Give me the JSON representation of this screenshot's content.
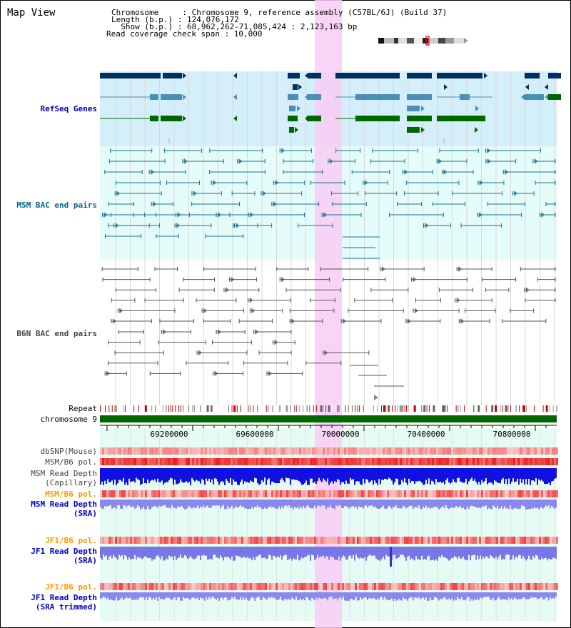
{
  "window": {
    "title": "Map View"
  },
  "header": {
    "chromosome_line": "Chromosome     : Chromosome 9, reference assembly (C57BL/6J) (Build 37)",
    "length_line": "Length (b.p.) : 124,076,172",
    "show_line": "  Show (b.p.) : 68,962,262-71,085,424 : 2,123,163 bp",
    "coverage_line": "Read coverage check span : 10,000"
  },
  "tracks": {
    "refseq": {
      "label": "RefSeq Genes",
      "color": "#0000aa"
    },
    "msm_bac": {
      "label": "MSM BAC end pairs",
      "color": "#006688"
    },
    "b6n_bac": {
      "label": "B6N BAC end pairs",
      "color": "#444444"
    },
    "repeat": {
      "label": "Repeat"
    },
    "chromosome": {
      "label": "chromosome 9"
    },
    "dbsnp": {
      "label": "dbSNP(Mouse)"
    },
    "msm_b6_pol_1": {
      "label": "MSM/B6 pol."
    },
    "msm_depth_cap": {
      "label": "MSM Read Depth\n(Capillary)"
    },
    "msm_b6_pol_2": {
      "label": "MSM/B6 pol.",
      "color": "#ff9900"
    },
    "msm_depth_sra": {
      "label": "MSM Read Depth\n(SRA)",
      "color": "#0000cc"
    },
    "jf1_b6_pol_1": {
      "label": "JF1/B6 pol.",
      "color": "#ff9900"
    },
    "jf1_depth_sra": {
      "label": "JF1 Read Depth\n(SRA)",
      "color": "#0000cc"
    },
    "jf1_b6_pol_2": {
      "label": "JF1/B6 pol.",
      "color": "#ff9900"
    },
    "jf1_depth_trim": {
      "label": "JF1 Read Depth\n(SRA trimmed)",
      "color": "#0000cc"
    }
  },
  "axis": {
    "ticks": [
      "69200000",
      "69600000",
      "70000000",
      "70400000",
      "70800000"
    ]
  },
  "colors": {
    "highlight": "#f8ccf4",
    "refseq_bg": "#d4eefa",
    "bac_bg": "#e4fcfa",
    "chromosome_bar": "#006600",
    "gene_dark": "#00305f",
    "gene_mid": "#4a8fb8",
    "gene_green": "#006600"
  }
}
